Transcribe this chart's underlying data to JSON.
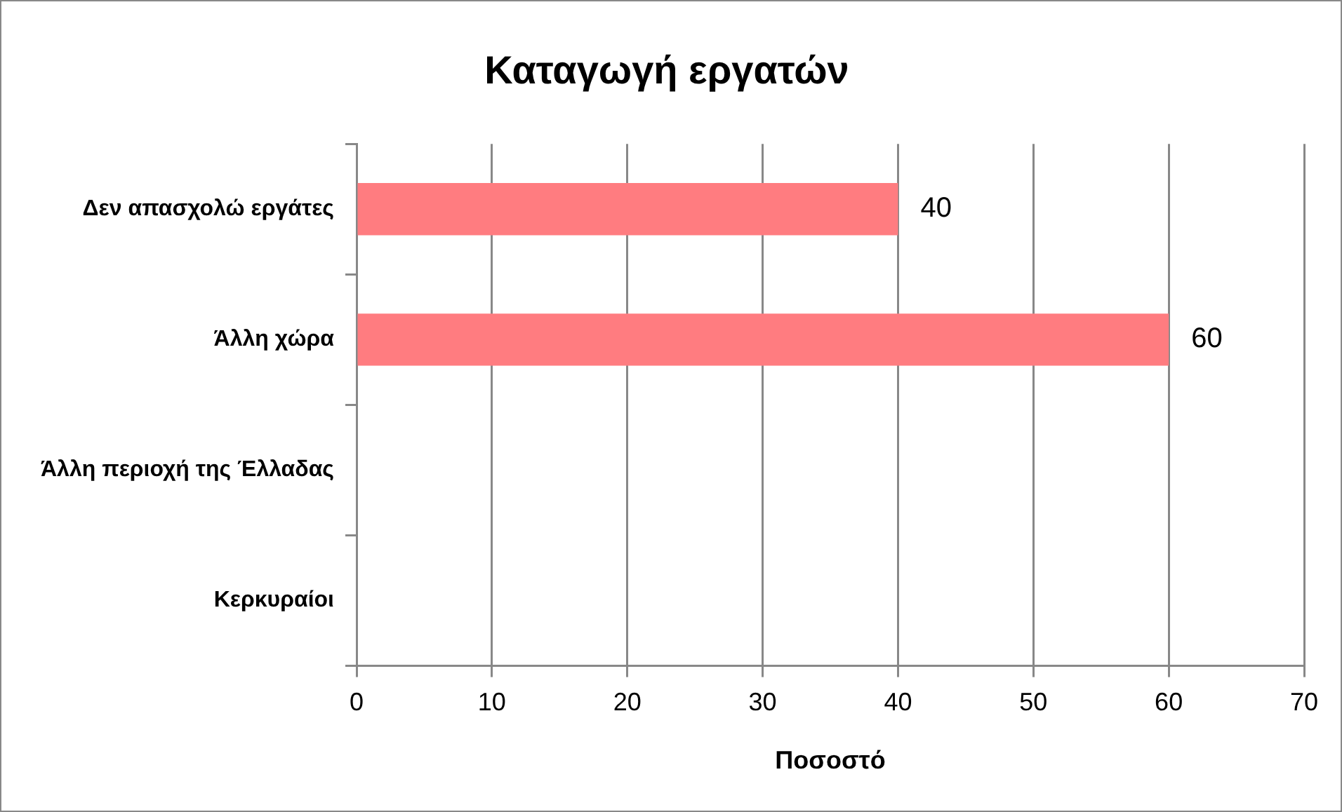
{
  "chart_data": {
    "type": "bar",
    "orientation": "horizontal",
    "title": "Καταγωγή εργατών",
    "xlabel": "Ποσοστό",
    "categories": [
      "Δεν απασχολώ εργάτες",
      "Άλλη χώρα",
      "Άλλη περιοχή της Έλλαδας",
      "Κερκυραίοι"
    ],
    "series": [
      {
        "color": "#ff7c80",
        "values": [
          40,
          60,
          null,
          null
        ]
      }
    ],
    "xlim": [
      0,
      70
    ],
    "xticks": [
      0,
      10,
      20,
      30,
      40,
      50,
      60,
      70
    ],
    "grid": "x",
    "legend": false,
    "data_labels": true
  }
}
